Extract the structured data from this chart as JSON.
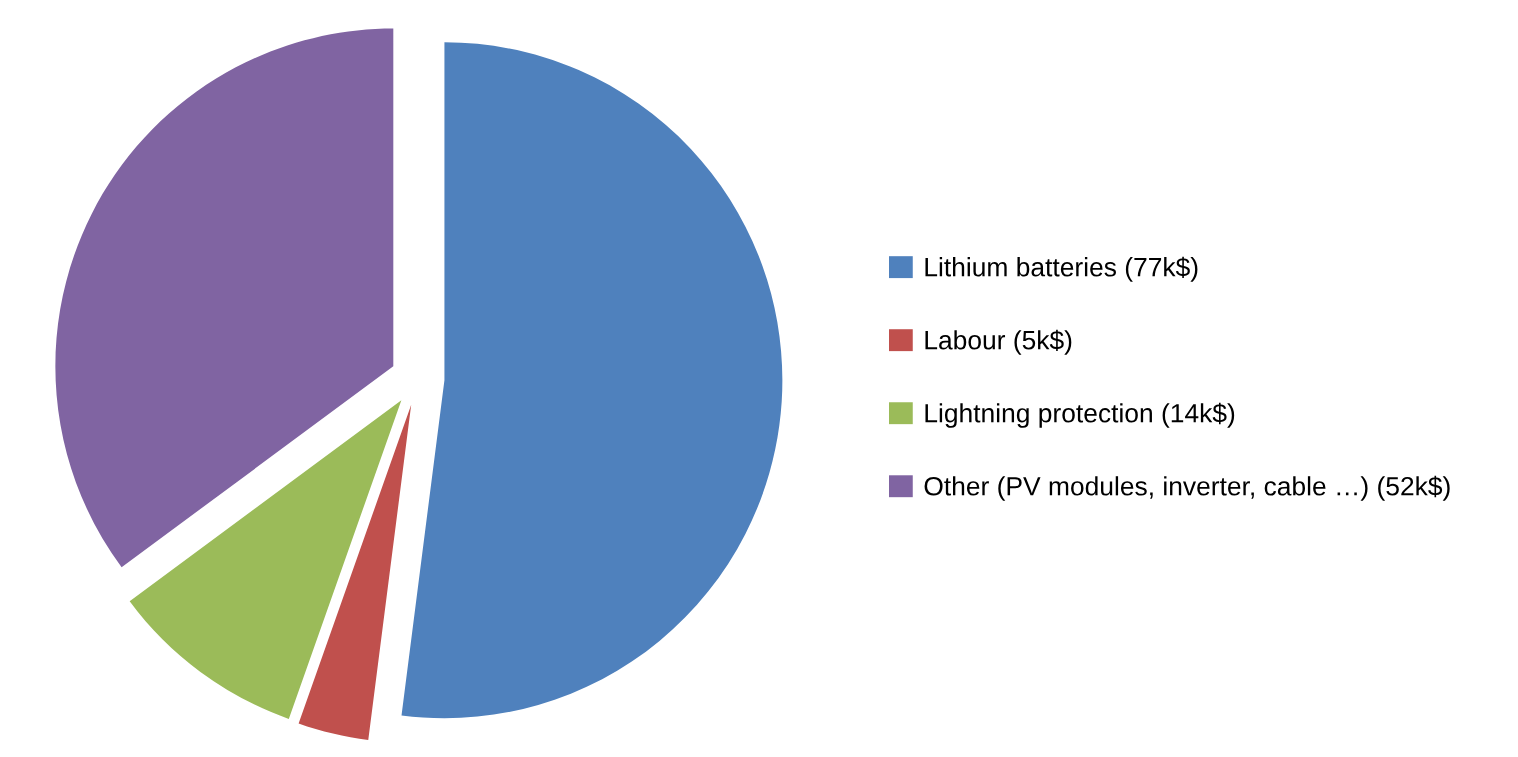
{
  "chart_data": {
    "type": "pie",
    "categories": [
      "Lithium batteries (77k$)",
      "Labour (5k$)",
      "Lightning protection (14k$)",
      "Other (PV modules, inverter, cable …) (52k$)"
    ],
    "values": [
      77,
      5,
      14,
      52
    ],
    "colors": [
      "#4f81bd",
      "#c0504d",
      "#9bbb59",
      "#8064a2"
    ],
    "legend": "right"
  }
}
